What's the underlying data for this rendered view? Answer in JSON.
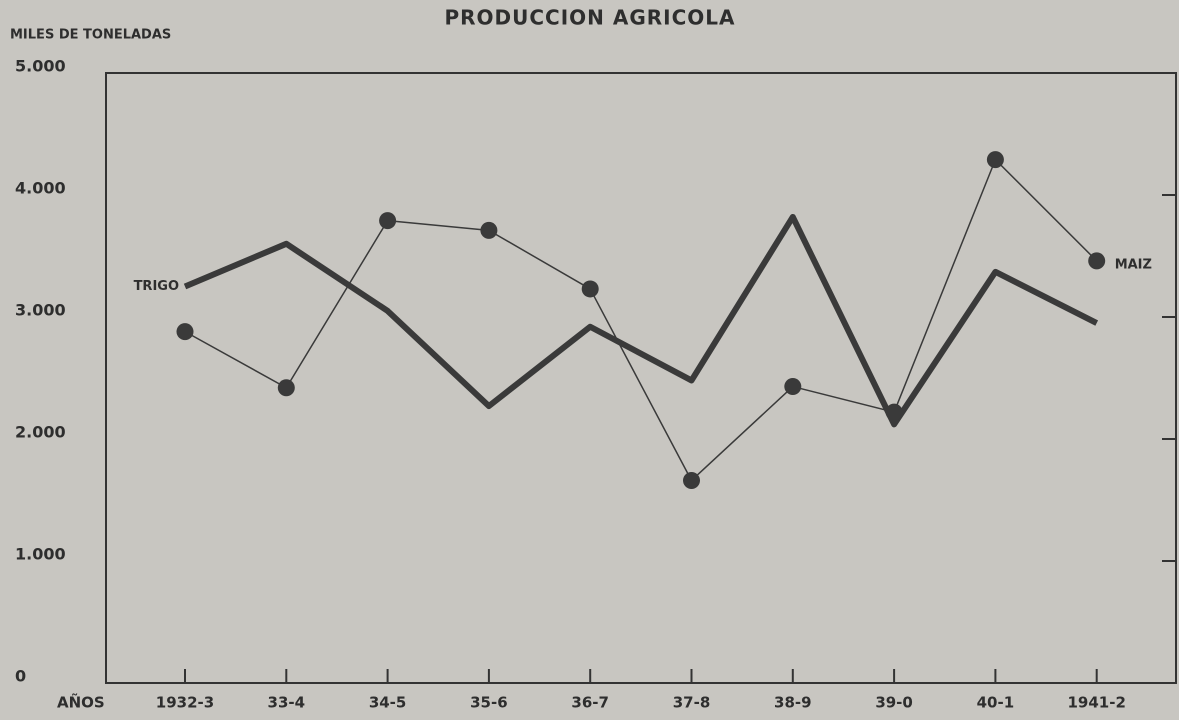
{
  "chart_data": {
    "type": "line",
    "title": "PRODUCCION  AGRICOLA",
    "y_label": "MILES DE TONELADAS",
    "x_label": "AÑOS",
    "categories": [
      "1932-3",
      "33-4",
      "34-5",
      "35-6",
      "36-7",
      "37-8",
      "38-9",
      "39-0",
      "40-1",
      "1941-2"
    ],
    "series": [
      {
        "name": "TRIGO",
        "color": "#3a3a3a",
        "values": [
          3250,
          3600,
          3050,
          2270,
          2920,
          2480,
          3820,
          2120,
          3370,
          2950
        ]
      },
      {
        "name": "MAIZ",
        "color": "#3a3a3a",
        "values": [
          2880,
          2420,
          3790,
          3710,
          3230,
          1660,
          2430,
          2220,
          4290,
          3460
        ]
      }
    ],
    "ylim": [
      0,
      5000
    ],
    "yticks": [
      0,
      {
        "value": 1000,
        "label": "1.000"
      },
      {
        "value": 2000,
        "label": "2.000"
      },
      {
        "value": 3000,
        "label": "3.000"
      },
      {
        "value": 4000,
        "label": "4.000"
      },
      {
        "value": 5000,
        "label": "5.000"
      }
    ]
  }
}
